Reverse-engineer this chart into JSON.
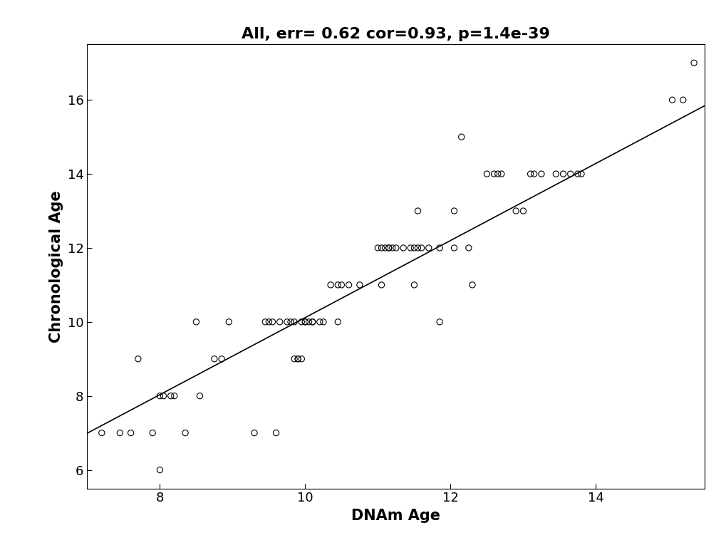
{
  "title": "All, err= 0.62 cor=0.93, p=1.4e-39",
  "xlabel": "DNAm Age",
  "ylabel": "Chronological Age",
  "xlim": [
    7.0,
    15.5
  ],
  "ylim": [
    5.5,
    17.5
  ],
  "xticks": [
    8,
    10,
    12,
    14
  ],
  "yticks": [
    6,
    8,
    10,
    12,
    14,
    16
  ],
  "scatter_x": [
    7.2,
    7.45,
    7.6,
    7.9,
    7.7,
    8.05,
    8.15,
    8.35,
    8.0,
    8.2,
    8.55,
    8.75,
    8.85,
    8.5,
    8.95,
    9.3,
    9.6,
    9.45,
    9.55,
    9.65,
    9.75,
    9.8,
    9.85,
    9.9,
    9.95,
    10.0,
    10.1,
    10.2,
    9.5,
    9.85,
    9.9,
    9.95,
    10.0,
    10.05,
    10.1,
    10.25,
    10.45,
    10.35,
    10.45,
    10.5,
    10.6,
    10.75,
    11.05,
    11.0,
    11.05,
    11.1,
    11.15,
    11.2,
    11.5,
    11.85,
    11.15,
    11.25,
    11.35,
    11.45,
    11.5,
    11.55,
    11.6,
    11.7,
    11.85,
    12.05,
    12.25,
    11.55,
    12.05,
    12.15,
    12.3,
    12.5,
    12.6,
    12.65,
    12.7,
    12.9,
    13.0,
    13.1,
    13.15,
    13.25,
    13.45,
    13.55,
    13.65,
    13.75,
    13.8,
    15.05,
    15.2,
    15.35,
    8.0
  ],
  "scatter_y": [
    7.0,
    7.0,
    7.0,
    7.0,
    9.0,
    8.0,
    8.0,
    7.0,
    8.0,
    8.0,
    8.0,
    9.0,
    9.0,
    10.0,
    10.0,
    7.0,
    7.0,
    10.0,
    10.0,
    10.0,
    10.0,
    10.0,
    9.0,
    9.0,
    9.0,
    10.0,
    10.0,
    10.0,
    10.0,
    10.0,
    9.0,
    10.0,
    10.0,
    10.0,
    10.0,
    10.0,
    10.0,
    11.0,
    11.0,
    11.0,
    11.0,
    11.0,
    11.0,
    12.0,
    12.0,
    12.0,
    12.0,
    12.0,
    11.0,
    10.0,
    12.0,
    12.0,
    12.0,
    12.0,
    12.0,
    12.0,
    12.0,
    12.0,
    12.0,
    12.0,
    12.0,
    13.0,
    13.0,
    15.0,
    11.0,
    14.0,
    14.0,
    14.0,
    14.0,
    13.0,
    13.0,
    14.0,
    14.0,
    14.0,
    14.0,
    14.0,
    14.0,
    14.0,
    14.0,
    16.0,
    16.0,
    17.0,
    6.0
  ],
  "reg_slope": 1.0417,
  "reg_intercept": -0.3,
  "line_color": "black",
  "scatter_color": "black",
  "background_color": "white",
  "title_fontsize": 16,
  "label_fontsize": 15,
  "tick_fontsize": 13
}
